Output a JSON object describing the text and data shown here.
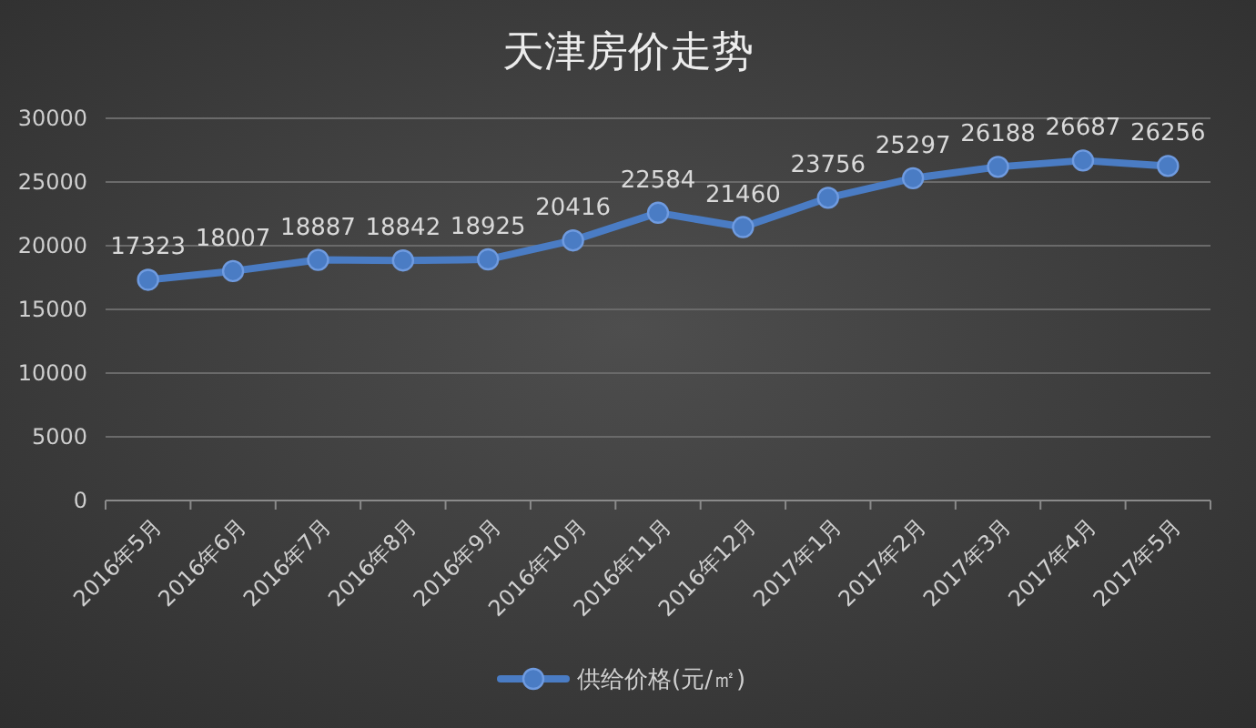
{
  "chart_data": {
    "type": "line",
    "title": "天津房价走势",
    "categories": [
      "2016年5月",
      "2016年6月",
      "2016年7月",
      "2016年8月",
      "2016年9月",
      "2016年10月",
      "2016年11月",
      "2016年12月",
      "2017年1月",
      "2017年2月",
      "2017年3月",
      "2017年4月",
      "2017年5月"
    ],
    "series": [
      {
        "name": "供给价格(元/㎡)",
        "color": "#4a7cc4",
        "values": [
          17323,
          18007,
          18887,
          18842,
          18925,
          20416,
          22584,
          21460,
          23756,
          25297,
          26188,
          26687,
          26256
        ]
      }
    ],
    "ylim": [
      0,
      30000
    ],
    "yticks": [
      0,
      5000,
      10000,
      15000,
      20000,
      25000,
      30000
    ],
    "grid": "y",
    "legend": "bottom",
    "marker": "circle",
    "line_style": "solid",
    "data_labels": true
  }
}
